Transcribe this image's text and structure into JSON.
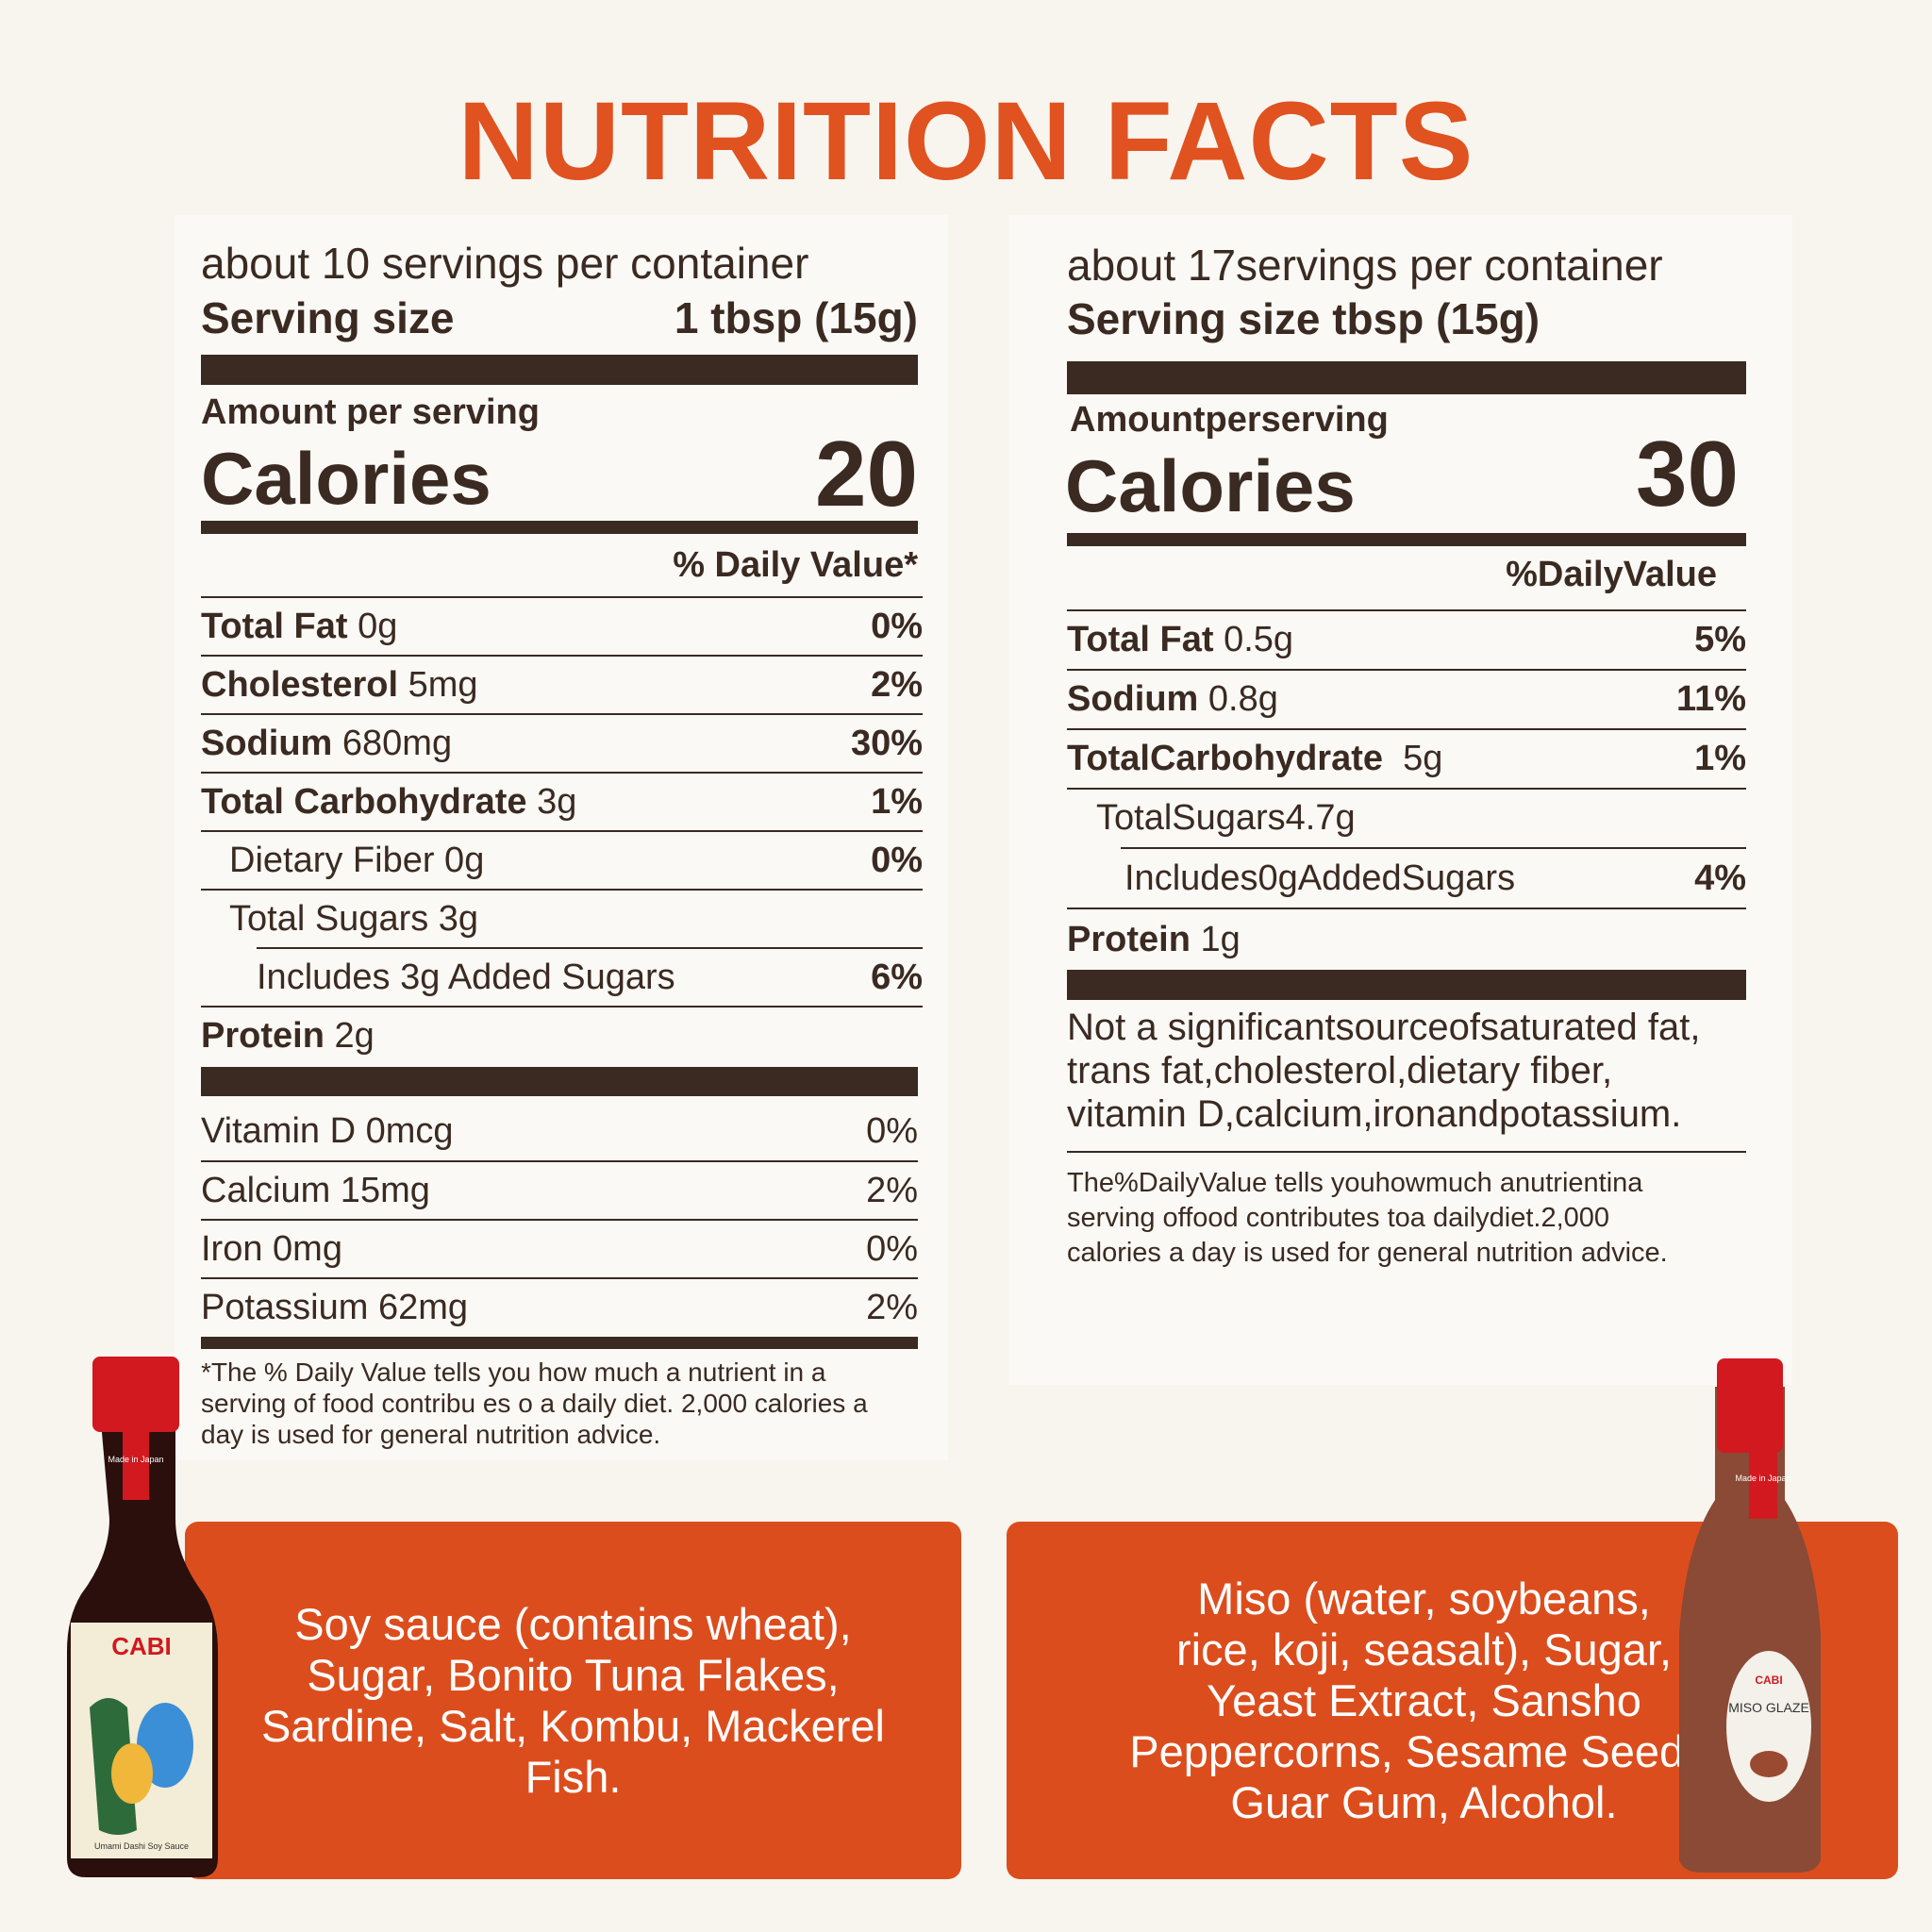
{
  "title": "NUTRITION FACTS",
  "left_panel": {
    "servings": "about 10 servings per container",
    "serving_size_label": "Serving size",
    "serving_size_value": "1 tbsp (15g)",
    "amount_per_serving": "Amount per serving",
    "calories_label": "Calories",
    "calories_value": "20",
    "daily_value_header": "% Daily Value*",
    "nutrients": [
      {
        "name": "Total Fat",
        "amount": "0g",
        "dv": "0%"
      },
      {
        "name": "Cholesterol",
        "amount": "5mg",
        "dv": "2%"
      },
      {
        "name": "Sodium",
        "amount": "680mg",
        "dv": "30%"
      },
      {
        "name": "Total Carbohydrate",
        "amount": "3g",
        "dv": "1%"
      },
      {
        "name": "Dietary Fiber 0g",
        "dv": "0%"
      },
      {
        "name": "Total Sugars 3g"
      },
      {
        "name": "Includes 3g Added Sugars",
        "dv": "6%"
      },
      {
        "name": "Protein",
        "amount": "2g"
      }
    ],
    "vitamins": [
      {
        "name": "Vitamin D 0mcg",
        "dv": "0%"
      },
      {
        "name": "Calcium 15mg",
        "dv": "2%"
      },
      {
        "name": "Iron 0mg",
        "dv": "0%"
      },
      {
        "name": "Potassium 62mg",
        "dv": "2%"
      }
    ],
    "footnote": [
      "*The % Daily Value tells you how much a nutrient in a",
      "serving of food contribu es  o a daily diet. 2,000 calories a",
      "day is used for general nutrition advice."
    ]
  },
  "right_panel": {
    "servings": "about 17servings per container",
    "serving_size": "Serving size tbsp (15g)",
    "amount_per_serving": "Amountperserving",
    "calories_label": "Calories",
    "calories_value": "30",
    "daily_value_header": "%DailyValue",
    "nutrients": [
      {
        "name": "Total Fat",
        "amount": "0.5g",
        "dv": "5%"
      },
      {
        "name": "Sodium",
        "amount": "0.8g",
        "dv": "11%"
      },
      {
        "name": "TotalCarbohydrate",
        "amount": "5g",
        "dv": "1%"
      },
      {
        "name": "TotalSugars4.7g"
      },
      {
        "name": "Includes0gAddedSugars",
        "dv": "4%"
      },
      {
        "name": "Protein",
        "amount": "1g"
      }
    ],
    "note": [
      "Not a significantsourceofsaturated fat,",
      "trans fat,cholesterol,dietary fiber,",
      "vitamin D,calcium,ironandpotassium."
    ],
    "footnote": [
      "The%DailyValue tells youhowmuch anutrientina",
      "serving offood contributes toa dailydiet.2,000",
      "calories a day is used for general nutrition advice."
    ]
  },
  "ingredients_left": [
    "Soy sauce (contains wheat),",
    "Sugar, Bonito Tuna Flakes,",
    "Sardine, Salt, Kombu, Mackerel",
    "Fish."
  ],
  "ingredients_right": [
    "Miso (water, soybeans,",
    "rice, koji, seasalt), Sugar,",
    "Yeast Extract, Sansho",
    "Peppercorns, Sesame Seeds,",
    "Guar Gum, Alcohol."
  ],
  "bottle_left": {
    "brand": "CABI",
    "badge": "Made in Japan",
    "product": "Umami Dashi Soy Sauce"
  },
  "bottle_right": {
    "brand": "CABI",
    "badge": "Made in Japan",
    "product": "MISO GLAZE"
  }
}
